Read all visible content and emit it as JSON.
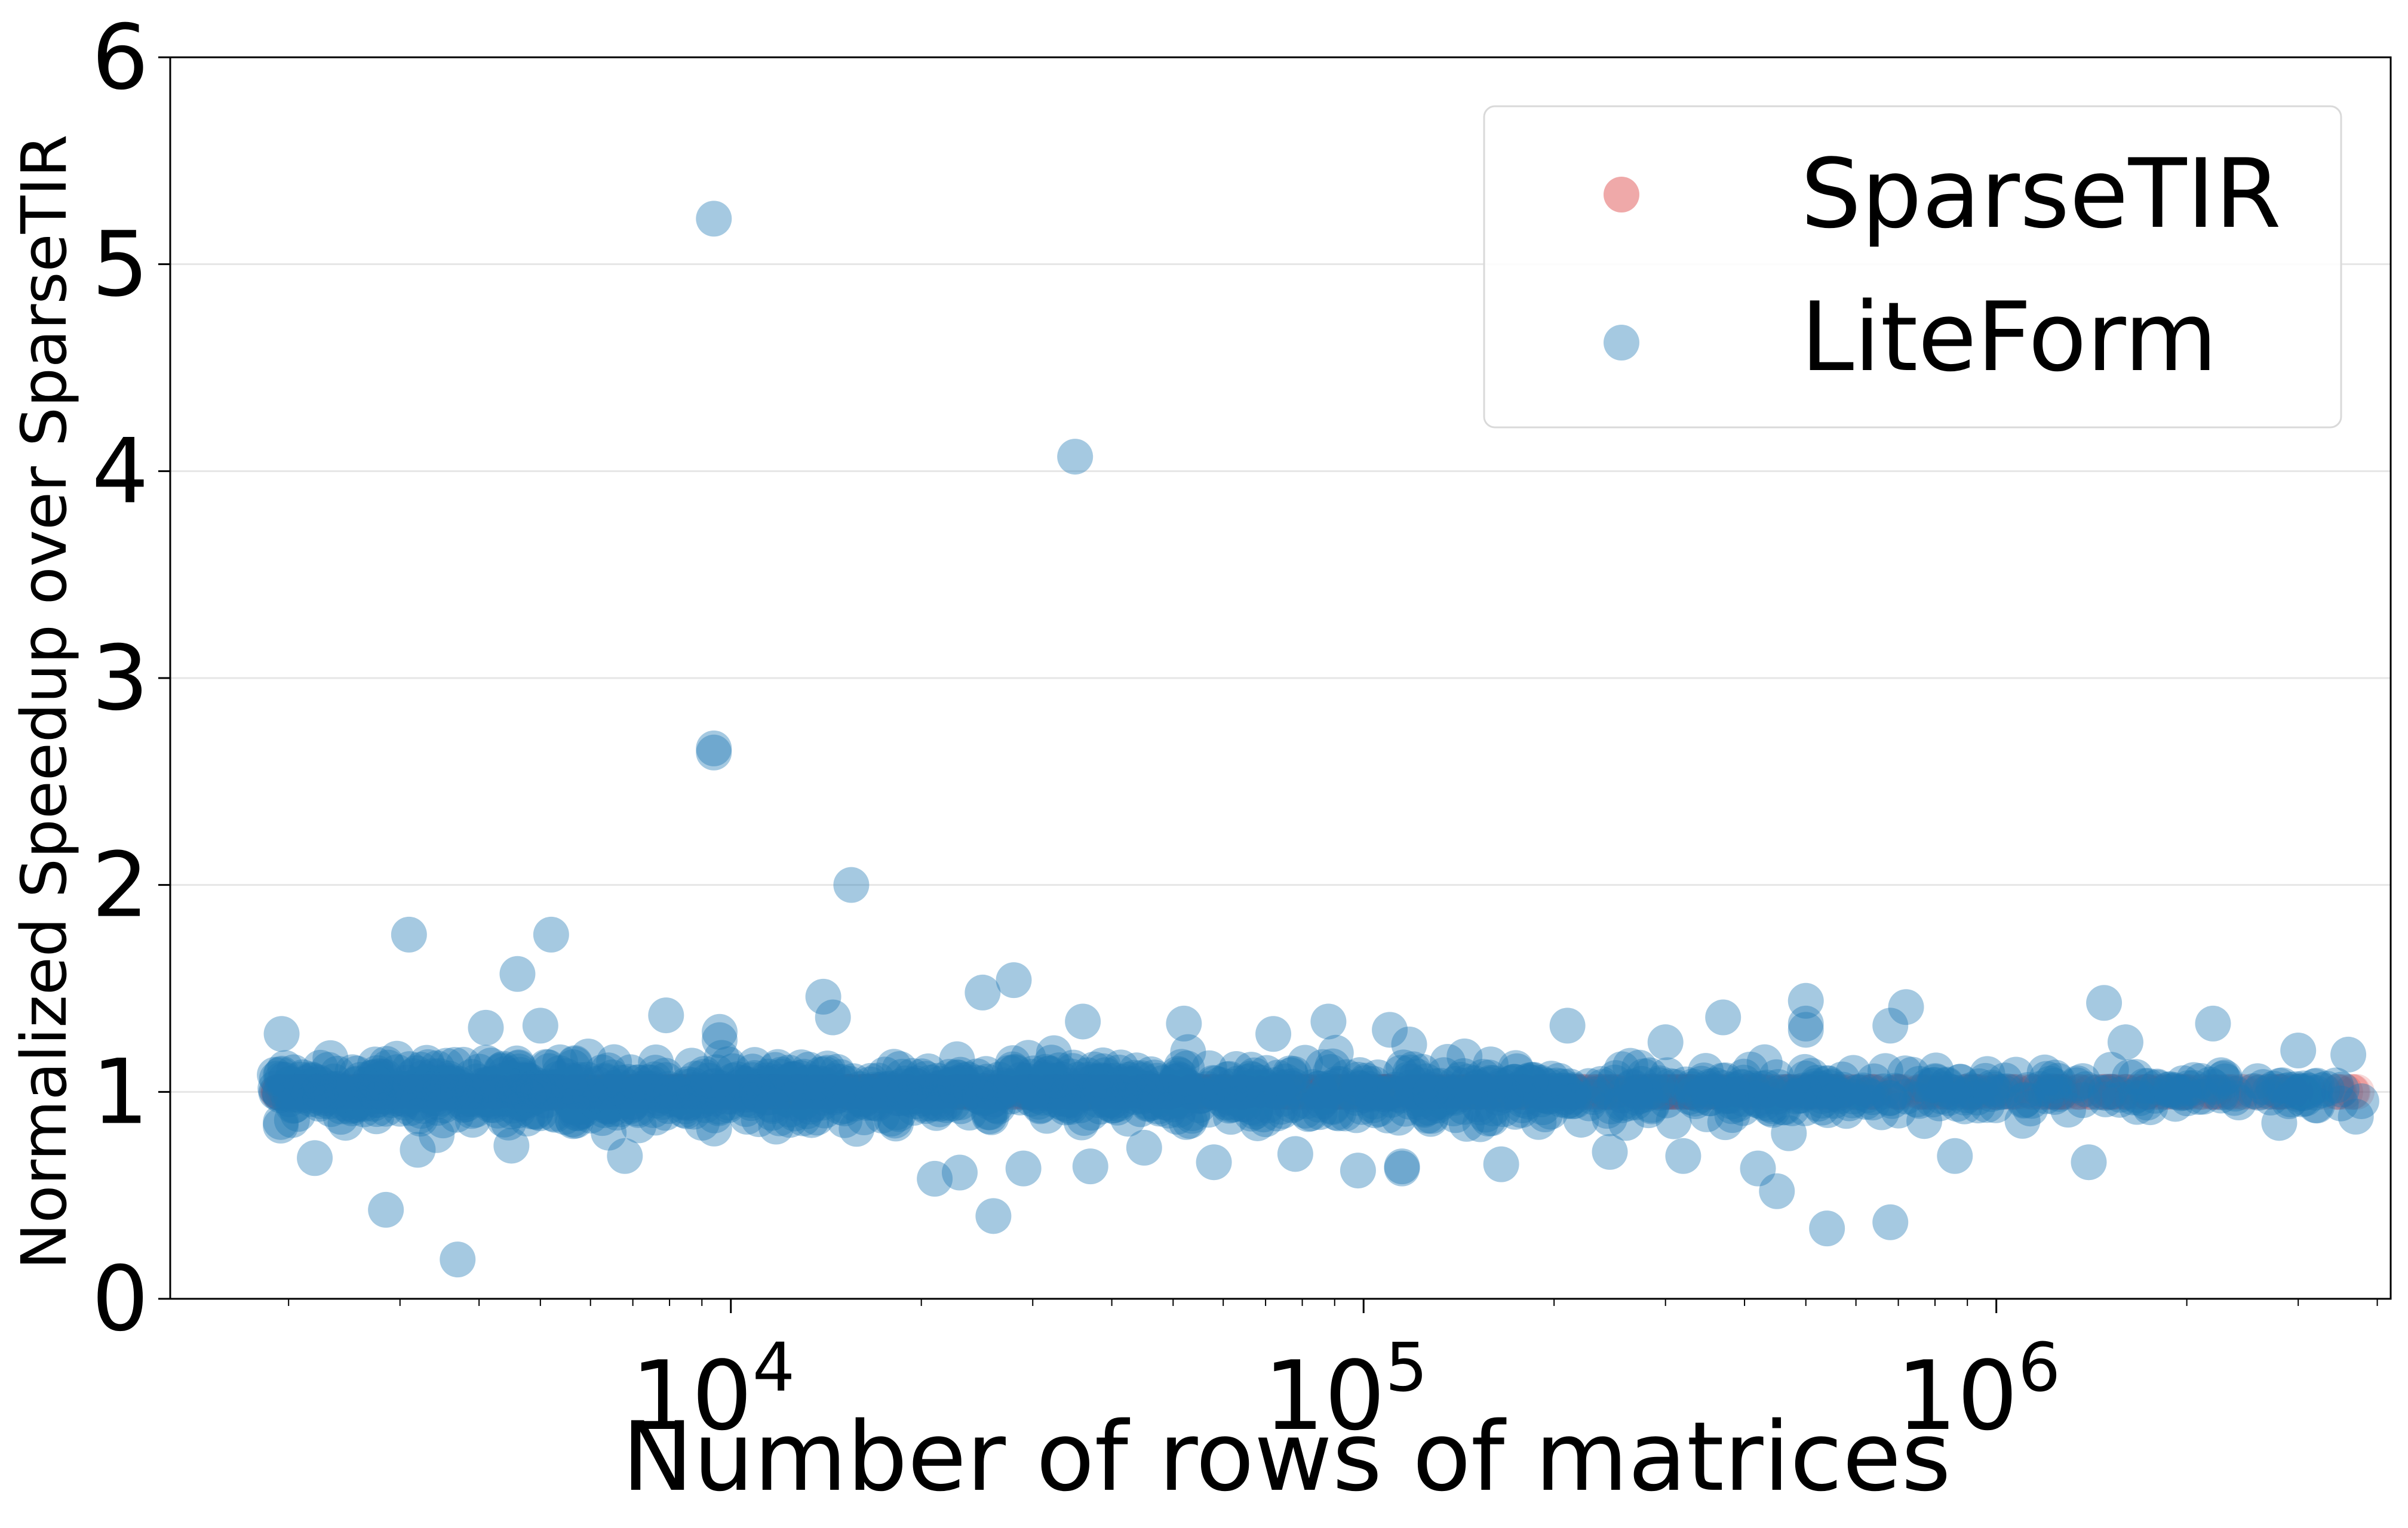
{
  "chart_data": {
    "type": "scatter",
    "xlabel": "Number of rows of matrices",
    "ylabel": "Normalized Speedup over SparseTIR",
    "xscale": "log",
    "xlim": [
      1300,
      4200000
    ],
    "ylim": [
      0,
      6
    ],
    "x_ticks": [
      {
        "value": 10000,
        "base": "10",
        "exp": "4"
      },
      {
        "value": 100000,
        "base": "10",
        "exp": "5"
      },
      {
        "value": 1000000,
        "base": "10",
        "exp": "6"
      }
    ],
    "y_ticks": [
      {
        "value": 0,
        "label": "0"
      },
      {
        "value": 1,
        "label": "1"
      },
      {
        "value": 2,
        "label": "2"
      },
      {
        "value": 3,
        "label": "3"
      },
      {
        "value": 4,
        "label": "4"
      },
      {
        "value": 5,
        "label": "5"
      },
      {
        "value": 6,
        "label": "6"
      }
    ],
    "grid": "horizontal",
    "legend_position": "top-right",
    "series": [
      {
        "name": "SparseTIR",
        "color": "#d62728",
        "constant_y": 1.0,
        "x_range": [
          1900,
          3800000
        ],
        "count": 1200,
        "points": []
      },
      {
        "name": "LiteForm",
        "color": "#1f77b4",
        "bulk": {
          "x_range": [
            1900,
            3800000
          ],
          "center_y": 1.0,
          "spread_y": 0.22,
          "count": 1400
        },
        "points": [
          [
            9400,
            5.22
          ],
          [
            35000,
            4.07
          ],
          [
            9400,
            2.66
          ],
          [
            9400,
            2.64
          ],
          [
            15500,
            2.0
          ],
          [
            3100,
            1.76
          ],
          [
            5200,
            1.76
          ],
          [
            4600,
            1.57
          ],
          [
            4100,
            1.31
          ],
          [
            5000,
            1.32
          ],
          [
            1950,
            1.28
          ],
          [
            7900,
            1.37
          ],
          [
            9600,
            1.29
          ],
          [
            9600,
            1.25
          ],
          [
            14000,
            1.46
          ],
          [
            14500,
            1.36
          ],
          [
            25000,
            1.48
          ],
          [
            28000,
            1.54
          ],
          [
            36000,
            1.34
          ],
          [
            52000,
            1.33
          ],
          [
            72000,
            1.28
          ],
          [
            88000,
            1.34
          ],
          [
            110000,
            1.3
          ],
          [
            210000,
            1.32
          ],
          [
            300000,
            1.24
          ],
          [
            370000,
            1.36
          ],
          [
            500000,
            1.44
          ],
          [
            500000,
            1.33
          ],
          [
            500000,
            1.3
          ],
          [
            680000,
            1.32
          ],
          [
            720000,
            1.41
          ],
          [
            1480000,
            1.43
          ],
          [
            1600000,
            1.24
          ],
          [
            2200000,
            1.33
          ],
          [
            3000000,
            1.2
          ],
          [
            3600000,
            1.18
          ],
          [
            2850,
            0.43
          ],
          [
            3700,
            0.19
          ],
          [
            26000,
            0.4
          ],
          [
            29000,
            0.63
          ],
          [
            37000,
            0.64
          ],
          [
            45000,
            0.73
          ],
          [
            58000,
            0.66
          ],
          [
            78000,
            0.7
          ],
          [
            98000,
            0.62
          ],
          [
            115000,
            0.64
          ],
          [
            115000,
            0.63
          ],
          [
            165000,
            0.65
          ],
          [
            245000,
            0.71
          ],
          [
            320000,
            0.69
          ],
          [
            420000,
            0.63
          ],
          [
            450000,
            0.52
          ],
          [
            470000,
            0.8
          ],
          [
            540000,
            0.34
          ],
          [
            680000,
            0.37
          ],
          [
            860000,
            0.69
          ],
          [
            1400000,
            0.66
          ],
          [
            2200,
            0.68
          ],
          [
            3200,
            0.72
          ],
          [
            4500,
            0.74
          ],
          [
            6800,
            0.69
          ],
          [
            21000,
            0.58
          ],
          [
            23000,
            0.61
          ],
          [
            160000,
            0.92
          ],
          [
            260000,
            0.85
          ],
          [
            1100000,
            0.86
          ],
          [
            2800000,
            0.85
          ],
          [
            3700000,
            0.88
          ]
        ]
      }
    ]
  }
}
